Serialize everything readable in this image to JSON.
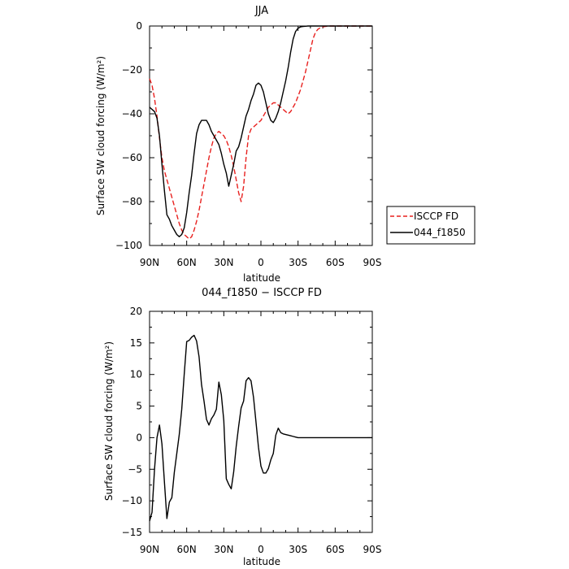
{
  "chart_data": [
    {
      "type": "line",
      "title": "JJA",
      "xlabel": "latitude",
      "ylabel": "Surface SW cloud forcing (W/m²)",
      "xlim": [
        90,
        -90
      ],
      "ylim": [
        -100,
        0
      ],
      "x_tick_values": [
        90,
        60,
        30,
        0,
        -30,
        -60,
        -90
      ],
      "x_tick_labels": [
        "90N",
        "60N",
        "30N",
        "0",
        "30S",
        "60S",
        "90S"
      ],
      "y_tick_values": [
        0,
        -20,
        -40,
        -60,
        -80,
        -100
      ],
      "y_tick_labels": [
        "0",
        "−20",
        "−40",
        "−60",
        "−80",
        "−100"
      ],
      "legend_position": "right",
      "series": [
        {
          "name": "ISCCP FD",
          "color": "#e8211f",
          "dash": "dashed",
          "x": [
            90,
            88,
            86,
            84,
            82,
            80,
            78,
            76,
            74,
            72,
            70,
            68,
            66,
            64,
            62,
            60,
            58,
            56,
            54,
            52,
            50,
            48,
            46,
            44,
            42,
            40,
            38,
            36,
            34,
            32,
            30,
            28,
            26,
            24,
            22,
            20,
            18,
            16,
            14,
            12,
            10,
            8,
            6,
            4,
            2,
            0,
            -2,
            -4,
            -6,
            -8,
            -10,
            -12,
            -14,
            -16,
            -18,
            -20,
            -22,
            -24,
            -26,
            -28,
            -30,
            -32,
            -34,
            -36,
            -38,
            -40,
            -42,
            -44,
            -46,
            -48,
            -50,
            -52,
            -54,
            -56,
            -58,
            -60,
            -62,
            -64,
            -66,
            -68,
            -70,
            -72,
            -74,
            -76,
            -78,
            -80,
            -82,
            -84,
            -86,
            -88,
            -90
          ],
          "y": [
            -24,
            -27,
            -33,
            -41,
            -51,
            -60,
            -66,
            -70,
            -74,
            -78,
            -82,
            -86,
            -90,
            -93,
            -95,
            -96,
            -97,
            -96,
            -93,
            -89,
            -84,
            -78,
            -72,
            -66,
            -60,
            -55,
            -51,
            -49,
            -48,
            -49,
            -50,
            -52,
            -55,
            -59,
            -64,
            -70,
            -76,
            -80,
            -73,
            -60,
            -50,
            -47,
            -46,
            -45,
            -44,
            -43,
            -41,
            -39,
            -37,
            -36,
            -35,
            -35,
            -36,
            -37,
            -38,
            -39,
            -40,
            -39,
            -37,
            -35,
            -32,
            -29,
            -25,
            -21,
            -16,
            -11,
            -6,
            -3,
            -1.5,
            -0.8,
            -0.4,
            -0.2,
            -0.1,
            0,
            0,
            0,
            0,
            0,
            0,
            0,
            0,
            0,
            0,
            0,
            0,
            0,
            0,
            0,
            0,
            0,
            0
          ]
        },
        {
          "name": "044_f1850",
          "color": "#000000",
          "dash": "solid",
          "x": [
            90,
            86,
            84,
            82,
            80,
            78,
            76,
            74,
            72,
            70,
            68,
            66,
            64,
            62,
            60,
            58,
            56,
            54,
            52,
            50,
            48,
            46,
            44,
            42,
            40,
            38,
            36,
            34,
            32,
            30,
            28,
            26,
            24,
            22,
            20,
            18,
            16,
            14,
            12,
            10,
            8,
            6,
            4,
            2,
            0,
            -2,
            -4,
            -6,
            -8,
            -10,
            -12,
            -14,
            -16,
            -18,
            -20,
            -22,
            -24,
            -26,
            -28,
            -30,
            -32,
            -34,
            -36,
            -38,
            -40,
            -42,
            -44,
            -46,
            -48,
            -50,
            -52,
            -54,
            -56,
            -58,
            -60,
            -62,
            -64,
            -66,
            -68,
            -70,
            -72,
            -74,
            -76,
            -78,
            -80,
            -82,
            -84,
            -86,
            -88,
            -90
          ],
          "y": [
            -37,
            -39,
            -42,
            -50,
            -63,
            -75,
            -86,
            -88,
            -91,
            -93,
            -95,
            -96,
            -95,
            -92,
            -85,
            -76,
            -68,
            -58,
            -49,
            -45,
            -43,
            -43,
            -43,
            -45,
            -48,
            -50,
            -52,
            -54,
            -58,
            -63,
            -67,
            -73,
            -68,
            -63,
            -57,
            -55,
            -51,
            -46,
            -41,
            -38,
            -34,
            -31,
            -27,
            -26,
            -27,
            -30,
            -35,
            -40,
            -43,
            -44,
            -42,
            -39,
            -35,
            -30,
            -25,
            -19,
            -12,
            -6,
            -2.5,
            -1,
            -0.4,
            -0.2,
            -0.1,
            0,
            0,
            0,
            0,
            0,
            0,
            0,
            0,
            0,
            0,
            0,
            0,
            0,
            0,
            0,
            0,
            0,
            0,
            0,
            0,
            0,
            0,
            0,
            0,
            0,
            0,
            0
          ]
        }
      ]
    },
    {
      "type": "line",
      "title": "044_f1850 − ISCCP FD",
      "xlabel": "latitude",
      "ylabel": "Surface SW cloud forcing (W/m²)",
      "xlim": [
        90,
        -90
      ],
      "ylim": [
        -15,
        20
      ],
      "x_tick_values": [
        90,
        60,
        30,
        0,
        -30,
        -60,
        -90
      ],
      "x_tick_labels": [
        "90N",
        "60N",
        "30N",
        "0",
        "30S",
        "60S",
        "90S"
      ],
      "y_tick_values": [
        20,
        15,
        10,
        5,
        0,
        -5,
        -10,
        -15
      ],
      "y_tick_labels": [
        "20",
        "15",
        "10",
        "5",
        "0",
        "−5",
        "−10",
        "−15"
      ],
      "series": [
        {
          "name": "",
          "color": "#000000",
          "dash": "solid",
          "x": [
            90,
            88,
            86,
            84,
            82,
            80,
            78,
            76,
            74,
            72,
            70,
            68,
            66,
            64,
            62,
            60,
            58,
            56,
            54,
            52,
            50,
            48,
            46,
            44,
            42,
            40,
            38,
            36,
            34,
            32,
            30,
            28,
            26,
            24,
            22,
            20,
            18,
            16,
            14,
            12,
            10,
            8,
            6,
            4,
            2,
            0,
            -2,
            -4,
            -6,
            -8,
            -10,
            -12,
            -14,
            -16,
            -18,
            -20,
            -22,
            -24,
            -26,
            -28,
            -30,
            -32,
            -34,
            -36,
            -38,
            -40,
            -42,
            -44,
            -46,
            -48,
            -50,
            -52,
            -54,
            -56,
            -58,
            -60,
            -62,
            -64,
            -66,
            -68,
            -70,
            -72,
            -74,
            -76,
            -78,
            -80,
            -82,
            -84,
            -86,
            -88,
            -90
          ],
          "y": [
            -13.2,
            -11.8,
            -5,
            0,
            2,
            -1,
            -7,
            -12.8,
            -10.2,
            -9.5,
            -5.5,
            -2.5,
            0.5,
            4.5,
            10,
            15.2,
            15.4,
            15.9,
            16.2,
            15.3,
            12.8,
            8.4,
            5.8,
            2.9,
            2,
            3,
            3.6,
            4.5,
            8.8,
            6.8,
            2.7,
            -6.5,
            -7.4,
            -8.1,
            -5.4,
            -1.4,
            1.8,
            4.7,
            5.8,
            9,
            9.5,
            9,
            6.4,
            2.5,
            -1.5,
            -4.5,
            -5.6,
            -5.6,
            -4.9,
            -3.5,
            -2.5,
            0.4,
            1.5,
            0.8,
            0.6,
            0.5,
            0.4,
            0.3,
            0.2,
            0.1,
            0,
            0,
            0,
            0,
            0,
            0,
            0,
            0,
            0,
            0,
            0,
            0,
            0,
            0,
            0,
            0,
            0,
            0,
            0,
            0,
            0,
            0,
            0,
            0,
            0,
            0,
            0,
            0,
            0,
            0,
            0
          ]
        }
      ]
    }
  ]
}
